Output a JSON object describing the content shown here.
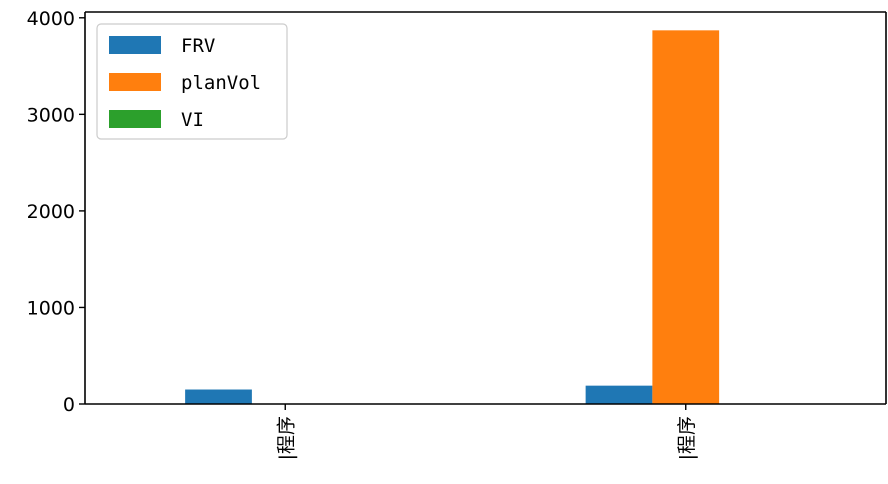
{
  "chart_data": {
    "type": "bar",
    "categories": [
      "|程序",
      "|程序"
    ],
    "series": [
      {
        "name": "FRV",
        "values": [
          150,
          190
        ],
        "color": "#1f77b4"
      },
      {
        "name": "planVol",
        "values": [
          0,
          3870
        ],
        "color": "#ff7f0e"
      },
      {
        "name": "VI",
        "values": [
          0,
          0
        ],
        "color": "#2ca02c"
      }
    ],
    "title": "",
    "xlabel": "",
    "ylabel": "",
    "ylim": [
      0,
      4060
    ],
    "yticks": [
      0,
      1000,
      2000,
      3000,
      4000
    ],
    "ytick_labels": [
      "0",
      "1000",
      "2000",
      "3000",
      "4000"
    ],
    "grid": false,
    "legend": {
      "position": "top-left",
      "entries": [
        "FRV",
        "planVol",
        "VI"
      ]
    }
  }
}
